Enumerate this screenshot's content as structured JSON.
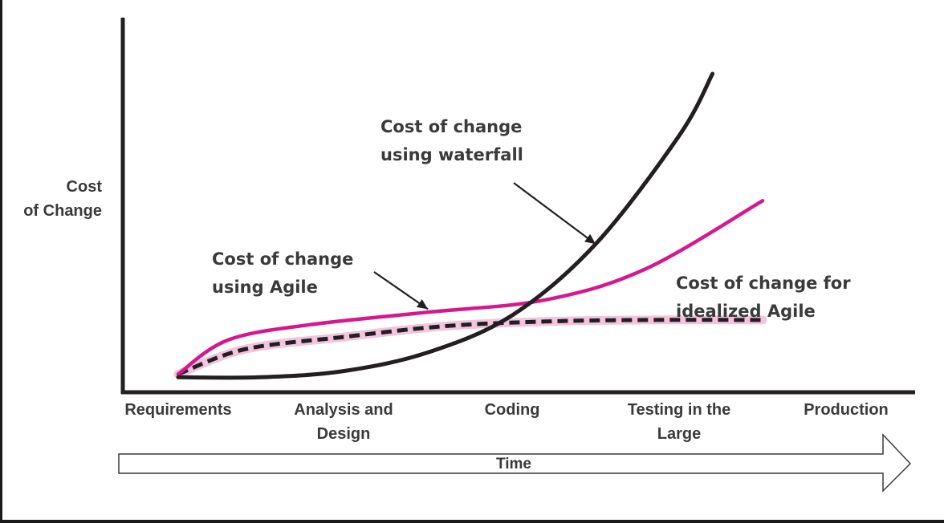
{
  "chart_data": {
    "type": "line",
    "title": "",
    "xlabel": "Time",
    "ylabel": [
      "Cost",
      "of Change"
    ],
    "categories": [
      {
        "lines": [
          "Requirements"
        ]
      },
      {
        "lines": [
          "Analysis and",
          "Design"
        ]
      },
      {
        "lines": [
          "Coding"
        ]
      },
      {
        "lines": [
          "Testing in the",
          "Large"
        ]
      },
      {
        "lines": [
          "Production"
        ]
      }
    ],
    "x_range": [
      0,
      4.8
    ],
    "y_range": [
      0,
      1
    ],
    "grid": false,
    "y_ticks": false,
    "series": [
      {
        "key": "waterfall",
        "color": "#231f20",
        "dash": false,
        "x": [
          0,
          0.5,
          1,
          1.5,
          2,
          2.5,
          3,
          3.2
        ],
        "y": [
          0.02,
          0.02,
          0.04,
          0.1,
          0.22,
          0.45,
          0.8,
          1.0
        ]
      },
      {
        "key": "agile",
        "color": "#d6188e",
        "dash": false,
        "x": [
          0,
          0.3,
          0.8,
          1.5,
          2.2,
          2.8,
          3.5
        ],
        "y": [
          0.03,
          0.14,
          0.19,
          0.23,
          0.27,
          0.37,
          0.59
        ]
      },
      {
        "key": "idealized",
        "color": "#231f20",
        "dash": true,
        "x": [
          0,
          0.4,
          1,
          1.6,
          2.2,
          2.8,
          3.5
        ],
        "y": [
          0.03,
          0.11,
          0.15,
          0.185,
          0.2,
          0.205,
          0.205
        ]
      }
    ],
    "annotations": [
      {
        "series": "waterfall",
        "lines": [
          "Cost of change",
          "using waterfall"
        ],
        "target": [
          2.5,
          0.45
        ]
      },
      {
        "series": "agile",
        "lines": [
          "Cost of change",
          "using Agile"
        ],
        "target": [
          1.5,
          0.24
        ]
      },
      {
        "series": "idealized",
        "lines": [
          "Cost of change for",
          "idealized Agile"
        ]
      }
    ]
  }
}
